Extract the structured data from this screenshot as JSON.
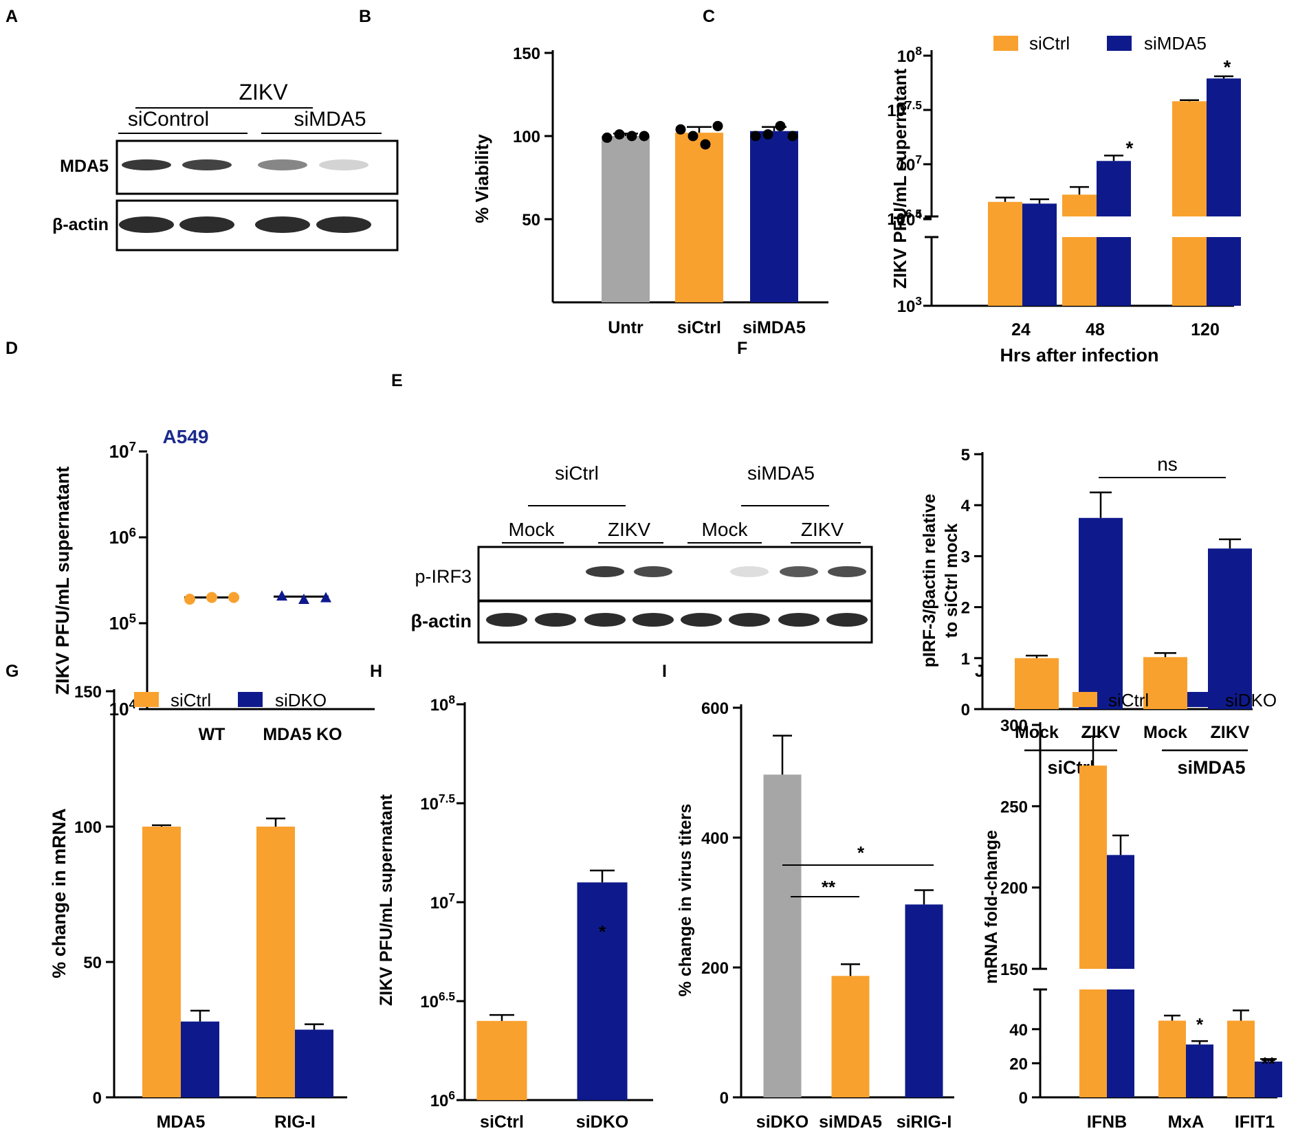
{
  "colors": {
    "orange": "#F9A12E",
    "navy": "#0E1A8C",
    "gray": "#A6A6A6",
    "black": "#000000",
    "a549": "#1B2A8C"
  },
  "panel_letters": [
    "A",
    "B",
    "C",
    "D",
    "E",
    "F",
    "G",
    "H",
    "I",
    "J"
  ],
  "blots": {
    "A": {
      "header": "ZIKV",
      "groups": [
        "siControl",
        "siMDA5"
      ],
      "rows": [
        "MDA5",
        "β-actin"
      ]
    },
    "E": {
      "groups": [
        "siCtrl",
        "siMDA5"
      ],
      "subgroups": [
        "Mock",
        "ZIKV",
        "Mock",
        "ZIKV"
      ],
      "rows": [
        "p-IRF3",
        "β-actin"
      ]
    }
  },
  "chart_data": [
    {
      "id": "B",
      "type": "bar",
      "ylabel": "% Viability",
      "ylim": [
        0,
        150
      ],
      "yticks": [
        "50",
        "100",
        "150"
      ],
      "categories": [
        "Untr",
        "siCtrl",
        "siMDA5"
      ],
      "values": [
        100,
        102,
        103
      ],
      "errors": [
        1.5,
        3.5,
        2.5
      ],
      "points": [
        [
          99,
          101,
          100,
          100
        ],
        [
          104,
          100,
          95,
          106
        ],
        [
          100,
          101,
          106,
          100
        ]
      ]
    },
    {
      "id": "C",
      "type": "bar",
      "ylabel": "ZIKV PFU/mL supernatant",
      "xlabel": "Hrs after infection",
      "yscale": "log-broken",
      "yticks": [
        "10^3",
        "10^4",
        "10^6.5",
        "10^7",
        "10^7.5",
        "10^8"
      ],
      "categories": [
        "24",
        "48",
        "120"
      ],
      "series": [
        {
          "name": "siCtrl",
          "values_log10": [
            4.2,
            6.72,
            7.58
          ],
          "errors_log10": [
            0.05,
            0.07,
            0.01
          ]
        },
        {
          "name": "siMDA5",
          "values_log10": [
            4.18,
            7.03,
            7.79
          ],
          "errors_log10": [
            0.05,
            0.05,
            0.02
          ]
        }
      ],
      "annotations": [
        "*",
        "*"
      ]
    },
    {
      "id": "D",
      "type": "scatter",
      "title": "A549",
      "ylabel": "ZIKV PFU/mL supernatant",
      "yscale": "log",
      "ylim_log10": [
        4,
        7
      ],
      "yticks": [
        "10^4",
        "10^5",
        "10^6",
        "10^7"
      ],
      "categories": [
        "WT",
        "MDA5 KO"
      ],
      "points_log10": [
        [
          5.28,
          5.3,
          5.3
        ],
        [
          5.32,
          5.28,
          5.3
        ]
      ],
      "means_log10": [
        5.3,
        5.31
      ]
    },
    {
      "id": "F",
      "type": "bar",
      "ylabel_lines": [
        "pIRF-3/βactin relative",
        "to siCtrl mock"
      ],
      "ylim": [
        0,
        5
      ],
      "yticks": [
        "0",
        "1",
        "2",
        "3",
        "4",
        "5"
      ],
      "categories": [
        "Mock",
        "ZIKV",
        "Mock",
        "ZIKV"
      ],
      "groups": [
        "siCtrl",
        "siMDA5"
      ],
      "values": [
        1.0,
        3.75,
        1.02,
        3.15
      ],
      "errors": [
        0.05,
        0.5,
        0.08,
        0.18
      ],
      "annotation": "ns"
    },
    {
      "id": "G",
      "type": "bar",
      "ylabel": "% change in mRNA",
      "ylim": [
        0,
        150
      ],
      "yticks": [
        "0",
        "50",
        "100",
        "150"
      ],
      "categories": [
        "MDA5",
        "RIG-I"
      ],
      "series": [
        {
          "name": "siCtrl",
          "values": [
            100,
            100
          ],
          "errors": [
            0.5,
            3
          ]
        },
        {
          "name": "siDKO",
          "values": [
            28,
            25
          ],
          "errors": [
            4,
            2
          ]
        }
      ]
    },
    {
      "id": "H",
      "type": "bar",
      "ylabel": "ZIKV PFU/mL supernatant",
      "yscale": "log",
      "ylim_log10": [
        6,
        8
      ],
      "yticks": [
        "10^6",
        "10^6.5",
        "10^7",
        "10^7.5",
        "10^8"
      ],
      "categories": [
        "siCtrl",
        "siDKO"
      ],
      "values_log10": [
        6.4,
        7.1
      ],
      "errors_log10": [
        0.03,
        0.06
      ],
      "annotation": "*"
    },
    {
      "id": "I",
      "type": "bar",
      "ylabel": "% change in virus titers",
      "ylim": [
        0,
        600
      ],
      "yticks": [
        "0",
        "200",
        "400",
        "600"
      ],
      "categories": [
        "siDKO",
        "siMDA5",
        "siRIG-I"
      ],
      "values": [
        497,
        187,
        297
      ],
      "errors": [
        60,
        18,
        22
      ],
      "annotations": [
        "**",
        "*"
      ]
    },
    {
      "id": "J",
      "type": "bar",
      "ylabel": "mRNA fold-change",
      "yscale": "broken",
      "yticks": [
        "0",
        "20",
        "40",
        "150",
        "200",
        "250",
        "300"
      ],
      "categories": [
        "IFNB",
        "MxA",
        "IFIT1"
      ],
      "series": [
        {
          "name": "siCtrl",
          "values": [
            275,
            45,
            45
          ],
          "errors": [
            18,
            3,
            6
          ]
        },
        {
          "name": "siDKO",
          "values": [
            220,
            31,
            21
          ],
          "errors": [
            12,
            2,
            1.5
          ]
        }
      ],
      "annotations": [
        "*",
        "**"
      ]
    }
  ]
}
